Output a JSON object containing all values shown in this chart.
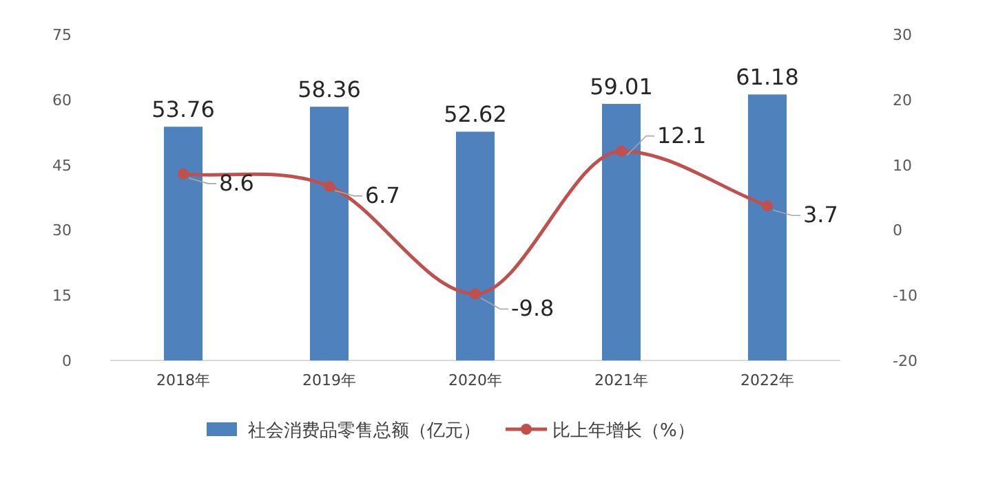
{
  "chart_data": {
    "type": "bar",
    "categories": [
      "2018年",
      "2019年",
      "2020年",
      "2021年",
      "2022年"
    ],
    "series": [
      {
        "name": "社会消费品零售总额（亿元）",
        "color": "#4f81bd",
        "values": [
          53.76,
          58.36,
          52.62,
          59.01,
          61.18
        ]
      },
      {
        "name": "比上年增长（%）",
        "type": "line",
        "axis": "y2",
        "color": "#c0504d",
        "marker": "circle",
        "values": [
          8.6,
          6.7,
          -9.8,
          12.1,
          3.7
        ]
      }
    ],
    "ylim": [
      0,
      75
    ],
    "yticks": [
      0,
      15,
      30,
      45,
      60,
      75
    ],
    "y2lim": [
      -20,
      30
    ],
    "y2ticks": [
      -20,
      -10,
      0,
      10,
      20,
      30
    ],
    "data_labels": true,
    "legend": "bottom"
  }
}
